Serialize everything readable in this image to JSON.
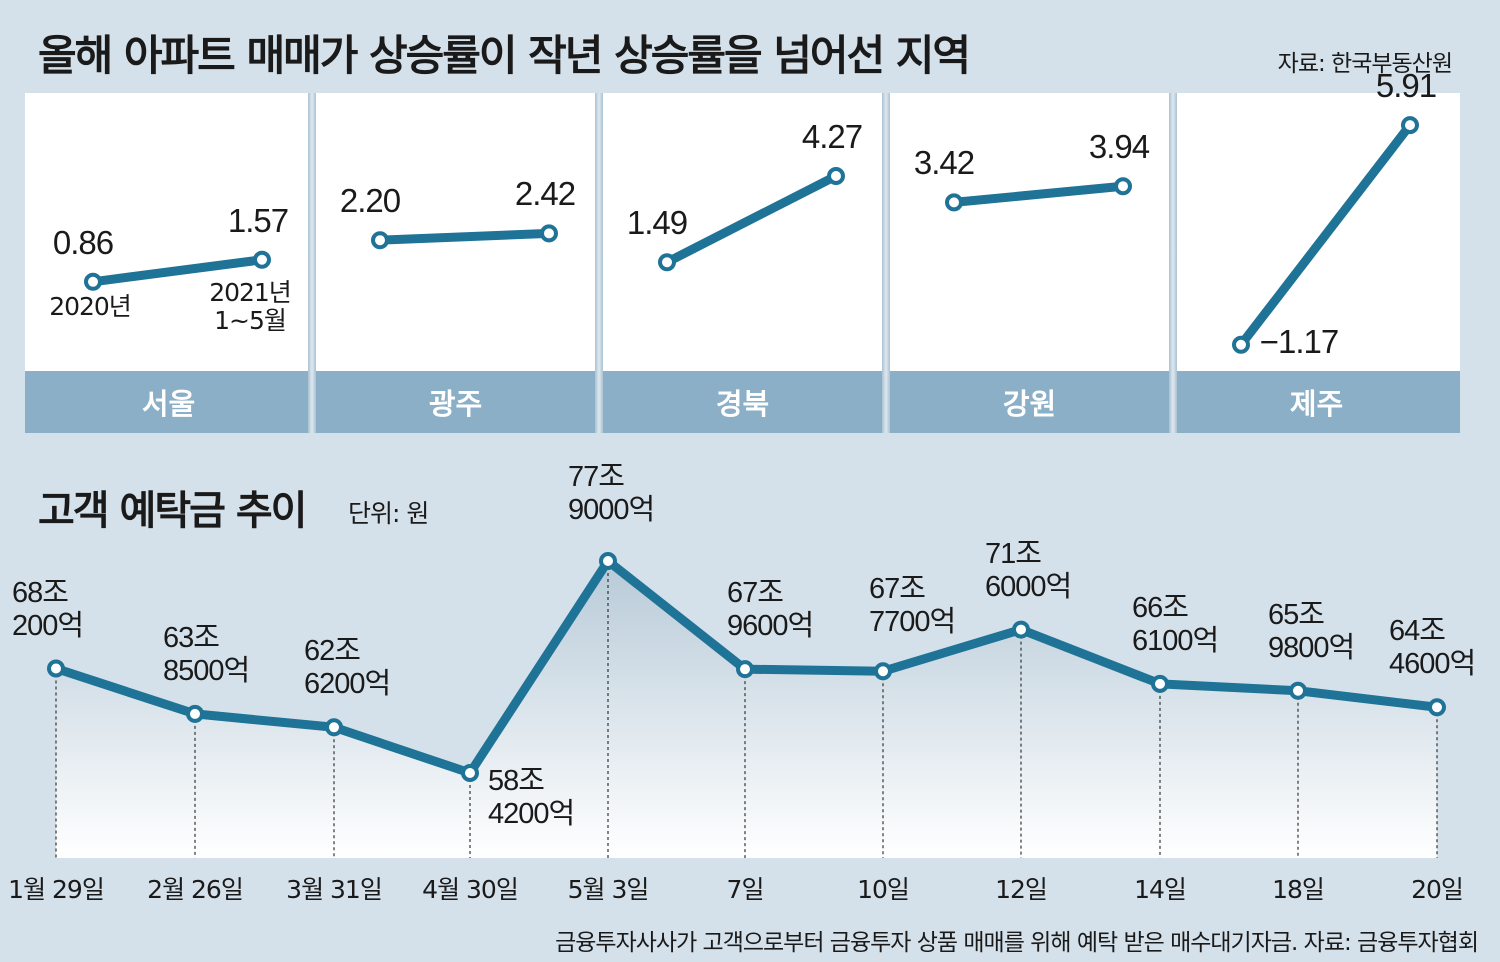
{
  "top": {
    "title": "올해 아파트 매매가 상승률이 작년 상승률을 넘어선 지역",
    "source": "자료: 한국부동산원",
    "year_label_1": "2020년",
    "year_label_2a": "2021년",
    "year_label_2b": "1~5월"
  },
  "bottom": {
    "title": "고객 예탁금 추이",
    "unit": "단위: 원",
    "footnote": "금융투자사사가 고객으로부터 금융투자 상품 매매를 위해 예탁 받은 매수대기자금. 자료: 금융투자협회"
  },
  "colors": {
    "line": "#1f7396",
    "region_band": "#8aafc6",
    "background": "#d5e1ea",
    "panel": "#ffffff"
  },
  "chart_data": [
    {
      "type": "line",
      "title": "올해 아파트 매매가 상승률이 작년 상승률을 넘어선 지역",
      "x": [
        "2020년",
        "2021년 1~5월"
      ],
      "series": [
        {
          "name": "서울",
          "values": [
            0.86,
            1.57
          ],
          "labels": [
            "0.86",
            "1.57"
          ]
        },
        {
          "name": "광주",
          "values": [
            2.2,
            2.42
          ],
          "labels": [
            "2.20",
            "2.42"
          ]
        },
        {
          "name": "경북",
          "values": [
            1.49,
            4.27
          ],
          "labels": [
            "1.49",
            "4.27"
          ]
        },
        {
          "name": "강원",
          "values": [
            3.42,
            3.94
          ],
          "labels": [
            "3.42",
            "3.94"
          ]
        },
        {
          "name": "제주",
          "values": [
            -1.17,
            5.91
          ],
          "labels": [
            "−1.17",
            "5.91"
          ]
        }
      ]
    },
    {
      "type": "line",
      "title": "고객 예탁금 추이",
      "unit": "단위: 원",
      "categories": [
        "1월 29일",
        "2월 26일",
        "3월 31일",
        "4월 30일",
        "5월 3일",
        "7일",
        "10일",
        "12일",
        "14일",
        "18일",
        "20일"
      ],
      "values": [
        680200,
        638500,
        626200,
        584200,
        779000,
        679600,
        677700,
        716000,
        666100,
        659800,
        644600
      ],
      "value_unit": "억",
      "labels": [
        [
          "68조",
          "200억"
        ],
        [
          "63조",
          "8500억"
        ],
        [
          "62조",
          "6200억"
        ],
        [
          "58조",
          "4200억"
        ],
        [
          "77조",
          "9000억"
        ],
        [
          "67조",
          "9600억"
        ],
        [
          "67조",
          "7700억"
        ],
        [
          "71조",
          "6000억"
        ],
        [
          "66조",
          "6100억"
        ],
        [
          "65조",
          "9800억"
        ],
        [
          "64조",
          "4600억"
        ]
      ]
    }
  ]
}
